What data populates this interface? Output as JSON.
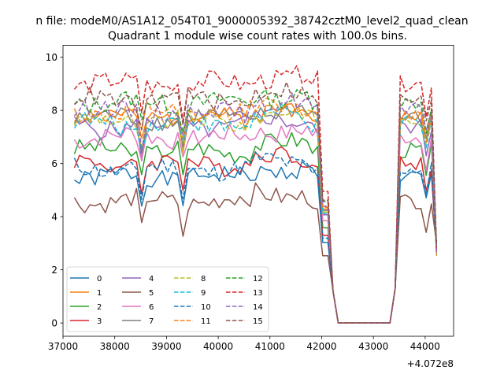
{
  "chart_data": {
    "type": "line",
    "suptitle": "n file: modeM0/AS1A12_054T01_9000005392_38742cztM0_level2_quad_clean",
    "title": "Quadrant 1 module wise count rates with 100.0s bins.",
    "xlabel": "",
    "ylabel": "",
    "offset_text": "+4.072e8",
    "xlim": [
      37000,
      44550
    ],
    "ylim": [
      -0.5,
      10.45
    ],
    "x_ticks": [
      37000,
      38000,
      39000,
      40000,
      41000,
      42000,
      43000,
      44000
    ],
    "y_ticks": [
      0,
      2,
      4,
      6,
      8,
      10
    ],
    "grid": false,
    "legend": {
      "placement": "lower-left",
      "columns": 4
    },
    "bins": {
      "start": 37220,
      "step": 100,
      "count": 71
    },
    "series": [
      {
        "name": "0",
        "color": "#1f77b4",
        "dashed": false,
        "level": 5.5
      },
      {
        "name": "1",
        "color": "#ff7f0e",
        "dashed": false,
        "level": 7.8
      },
      {
        "name": "2",
        "color": "#2ca02c",
        "dashed": false,
        "level": 6.5
      },
      {
        "name": "3",
        "color": "#d62728",
        "dashed": false,
        "level": 6.0
      },
      {
        "name": "4",
        "color": "#9467bd",
        "dashed": false,
        "level": 7.4
      },
      {
        "name": "5",
        "color": "#8c564b",
        "dashed": false,
        "level": 4.6
      },
      {
        "name": "6",
        "color": "#e377c2",
        "dashed": false,
        "level": 7.0
      },
      {
        "name": "7",
        "color": "#7f7f7f",
        "dashed": false,
        "level": 7.7
      },
      {
        "name": "8",
        "color": "#bcbd22",
        "dashed": true,
        "level": 7.6
      },
      {
        "name": "9",
        "color": "#17becf",
        "dashed": true,
        "level": 7.5
      },
      {
        "name": "10",
        "color": "#1f77b4",
        "dashed": true,
        "level": 5.8
      },
      {
        "name": "11",
        "color": "#ff7f0e",
        "dashed": true,
        "level": 7.9
      },
      {
        "name": "12",
        "color": "#2ca02c",
        "dashed": true,
        "level": 8.3
      },
      {
        "name": "13",
        "color": "#d62728",
        "dashed": true,
        "level": 9.0
      },
      {
        "name": "14",
        "color": "#9467bd",
        "dashed": true,
        "level": 8.0
      },
      {
        "name": "15",
        "color": "#8c564b",
        "dashed": true,
        "level": 8.4
      }
    ]
  }
}
